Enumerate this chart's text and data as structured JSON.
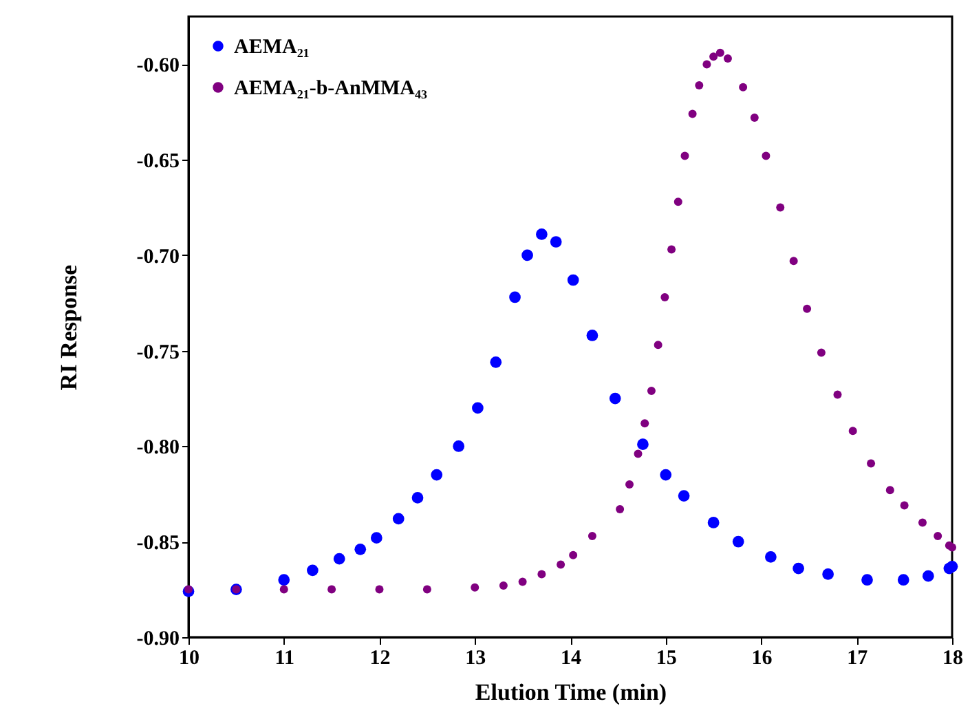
{
  "chart_data": {
    "type": "scatter",
    "xlabel": "Elution Time (min)",
    "ylabel": "RI Response",
    "xlim": [
      10,
      18
    ],
    "xticks": [
      10,
      11,
      12,
      13,
      14,
      15,
      16,
      17,
      18
    ],
    "ylim": [
      -0.9,
      -0.575
    ],
    "yticks": [
      {
        "value": -0.9,
        "label": "-0.90"
      },
      {
        "value": -0.85,
        "label": "-0.85"
      },
      {
        "value": -0.8,
        "label": "-0.80"
      },
      {
        "value": -0.75,
        "label": "-0.75"
      },
      {
        "value": -0.7,
        "label": "-0.70"
      },
      {
        "value": -0.65,
        "label": "-0.65"
      },
      {
        "value": -0.6,
        "label": "-0.60"
      }
    ],
    "grid": false,
    "legend": "top left",
    "marker": "circle",
    "series": [
      {
        "name": "AEMA₂₁",
        "color": "#0000ff",
        "x": [
          10,
          10.5,
          11,
          11.3,
          11.58,
          11.8,
          11.97,
          12.2,
          12.4,
          12.6,
          12.83,
          13.03,
          13.22,
          13.42,
          13.55,
          13.7,
          13.85,
          14.03,
          14.23,
          14.47,
          14.76,
          15.0,
          15.19,
          15.5,
          15.76,
          16.1,
          16.39,
          16.7,
          17.11,
          17.49,
          17.75,
          17.97,
          18
        ],
        "values": [
          -0.876,
          -0.875,
          -0.87,
          -0.865,
          -0.859,
          -0.854,
          -0.848,
          -0.838,
          -0.827,
          -0.815,
          -0.8,
          -0.78,
          -0.756,
          -0.722,
          -0.7,
          -0.689,
          -0.693,
          -0.713,
          -0.742,
          -0.775,
          -0.799,
          -0.815,
          -0.826,
          -0.84,
          -0.85,
          -0.858,
          -0.864,
          -0.867,
          -0.87,
          -0.87,
          -0.868,
          -0.864,
          -0.863
        ]
      },
      {
        "name": "AEMA₂₁-b-AnMMA₄₃",
        "color": "#800080",
        "x": [
          10,
          10.5,
          11,
          11.5,
          12,
          12.5,
          13,
          13.3,
          13.5,
          13.7,
          13.9,
          14.03,
          14.23,
          14.52,
          14.62,
          14.71,
          14.78,
          14.85,
          14.92,
          14.99,
          15.06,
          15.13,
          15.2,
          15.28,
          15.35,
          15.43,
          15.5,
          15.57,
          15.65,
          15.81,
          15.93,
          16.05,
          16.2,
          16.34,
          16.48,
          16.63,
          16.8,
          16.96,
          17.15,
          17.35,
          17.5,
          17.69,
          17.85,
          17.97,
          18
        ],
        "values": [
          -0.875,
          -0.875,
          -0.875,
          -0.875,
          -0.875,
          -0.875,
          -0.874,
          -0.873,
          -0.871,
          -0.867,
          -0.862,
          -0.857,
          -0.847,
          -0.833,
          -0.82,
          -0.804,
          -0.788,
          -0.771,
          -0.747,
          -0.722,
          -0.697,
          -0.672,
          -0.648,
          -0.626,
          -0.611,
          -0.6,
          -0.596,
          -0.594,
          -0.597,
          -0.612,
          -0.628,
          -0.648,
          -0.675,
          -0.703,
          -0.728,
          -0.751,
          -0.773,
          -0.792,
          -0.809,
          -0.823,
          -0.831,
          -0.84,
          -0.847,
          -0.852,
          -0.853
        ]
      }
    ]
  }
}
